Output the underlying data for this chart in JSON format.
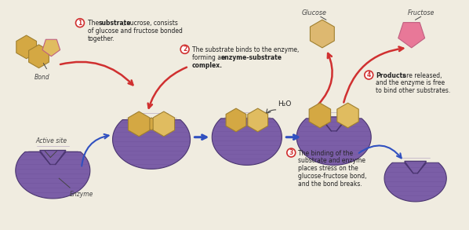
{
  "bg_color": "#f0ece0",
  "purple": "#7B5EA7",
  "purple_dark": "#4a3570",
  "purple_shade": "#6a4d96",
  "gold": "#D4A843",
  "gold_light": "#E0BC60",
  "pink": "#E87898",
  "pink_dark": "#C45070",
  "red_arrow": "#D03030",
  "blue_arrow": "#3050C0",
  "text_color": "#222222",
  "label_color": "#444444",
  "annotations": {
    "bond_label": "Bond",
    "active_site_label": "Active site",
    "enzyme_label": "Enzyme",
    "glucose_label": "Glucose",
    "fructose_label": "Fructose",
    "h2o_label": "H₂O"
  }
}
